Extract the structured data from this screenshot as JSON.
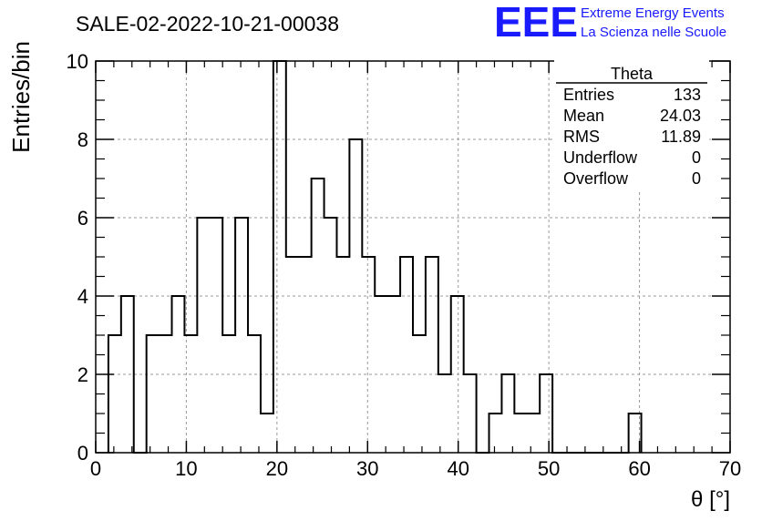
{
  "header": {
    "run_title": "SALE-02-2022-10-21-00038",
    "logo_letters": "EEE",
    "logo_line1": "Extreme Energy Events",
    "logo_line2": "La Scienza nelle Scuole",
    "logo_color": "#1a1aff"
  },
  "stats": {
    "title": "Theta",
    "rows": [
      {
        "label": "Entries",
        "value": "133"
      },
      {
        "label": "Mean",
        "value": "24.03"
      },
      {
        "label": "RMS",
        "value": "11.89"
      },
      {
        "label": "Underflow",
        "value": "0"
      },
      {
        "label": "Overflow",
        "value": "0"
      }
    ]
  },
  "chart_data": {
    "type": "bar",
    "style": "step-histogram",
    "xlabel": "θ [°]",
    "ylabel": "Entries/bin",
    "xlim": [
      0,
      70
    ],
    "ylim": [
      0,
      10
    ],
    "grid": true,
    "bin_width": 1.4,
    "bin_start": 1.4,
    "x_ticks": [
      "0",
      "10",
      "20",
      "30",
      "40",
      "50",
      "60",
      "70"
    ],
    "y_ticks": [
      "0",
      "2",
      "4",
      "6",
      "8",
      "10"
    ],
    "values": [
      3,
      4,
      0,
      3,
      3,
      4,
      3,
      6,
      6,
      3,
      6,
      3,
      1,
      10,
      5,
      5,
      7,
      6,
      5,
      8,
      5,
      4,
      4,
      5,
      3,
      5,
      2,
      4,
      2,
      0,
      1,
      2,
      1,
      1,
      2,
      0,
      0,
      0,
      0,
      0,
      0,
      1
    ],
    "line_color": "#000000"
  }
}
